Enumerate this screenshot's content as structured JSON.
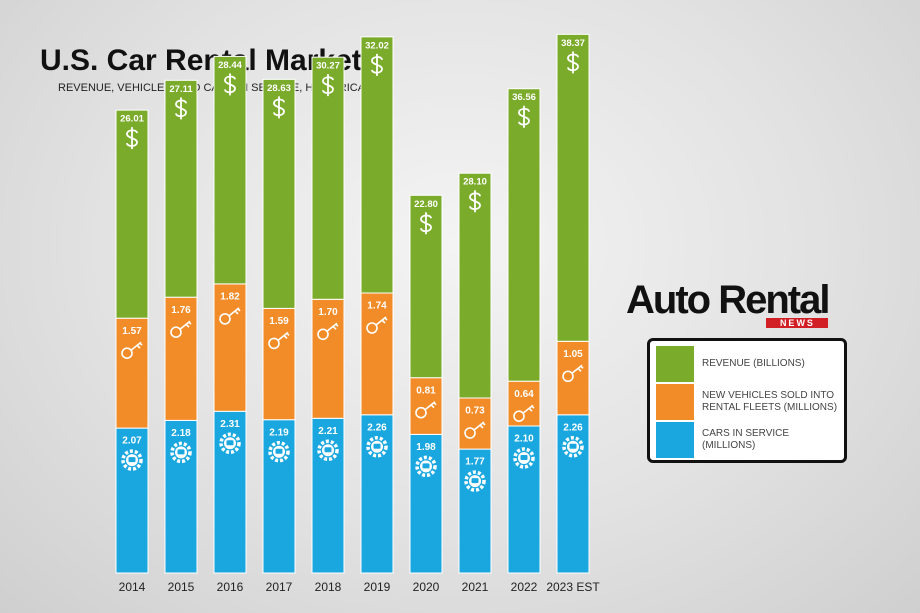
{
  "chart_data": {
    "type": "stacked_bar",
    "title": "U.S. Car Rental Market",
    "subtitle": "REVENUE, VEHICLES, AND CARS IN SERVICE, HISTORICAL",
    "categories": [
      "2014",
      "2015",
      "2016",
      "2017",
      "2018",
      "2019",
      "2020",
      "2021",
      "2022",
      "2023 EST"
    ],
    "series": [
      {
        "name": "Revenue (Billions)",
        "color": "#7aab2b",
        "values": [
          26.01,
          27.11,
          28.44,
          28.63,
          30.27,
          32.02,
          22.8,
          28.1,
          36.56,
          38.37
        ],
        "value_labels": [
          "26.01",
          "27.11",
          "28.44",
          "28.63",
          "30.27",
          "32.02",
          "22.80",
          "28.10",
          "36.56",
          "38.37"
        ]
      },
      {
        "name": "New Vehicles Sold into Rental Fleets (Millions)",
        "color": "#f28c28",
        "values": [
          1.57,
          1.76,
          1.82,
          1.59,
          1.7,
          1.74,
          0.81,
          0.73,
          0.64,
          1.05
        ],
        "value_labels": [
          "1.57",
          "1.76",
          "1.82",
          "1.59",
          "1.70",
          "1.74",
          "0.81",
          "0.73",
          "0.64",
          "1.05"
        ]
      },
      {
        "name": "Cars in Service (Millions)",
        "color": "#1aa7e0",
        "values": [
          2.07,
          2.18,
          2.31,
          2.19,
          2.21,
          2.26,
          1.98,
          1.77,
          2.1,
          2.26
        ],
        "value_labels": [
          "2.07",
          "2.18",
          "2.31",
          "2.19",
          "2.21",
          "2.26",
          "1.98",
          "1.77",
          "2.10",
          "2.26"
        ]
      }
    ]
  },
  "logo": {
    "name": "Auto Rental",
    "tag": "NEWS"
  }
}
